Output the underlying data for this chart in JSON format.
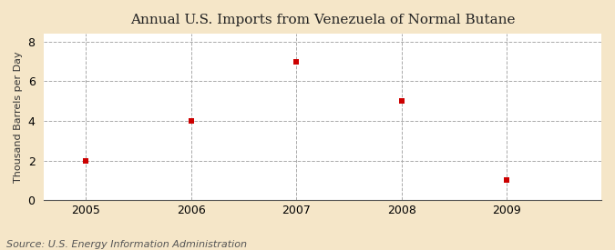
{
  "title": "Annual U.S. Imports from Venezuela of Normal Butane",
  "ylabel": "Thousand Barrels per Day",
  "source": "Source: U.S. Energy Information Administration",
  "x_values": [
    2005,
    2006,
    2007,
    2008,
    2009
  ],
  "y_values": [
    2,
    4,
    7,
    5,
    1
  ],
  "xlim": [
    2004.6,
    2009.9
  ],
  "ylim": [
    0,
    8.4
  ],
  "yticks": [
    0,
    2,
    4,
    6,
    8
  ],
  "xticks": [
    2005,
    2006,
    2007,
    2008,
    2009
  ],
  "marker_color": "#cc0000",
  "marker": "s",
  "marker_size": 4,
  "plot_bg_color": "#ffffff",
  "fig_bg_color": "#f5e6c8",
  "grid_color": "#aaaaaa",
  "title_fontsize": 11,
  "label_fontsize": 8,
  "tick_fontsize": 9,
  "source_fontsize": 8,
  "ytick_labels": [
    "0",
    "2",
    "4",
    "6",
    "8"
  ]
}
